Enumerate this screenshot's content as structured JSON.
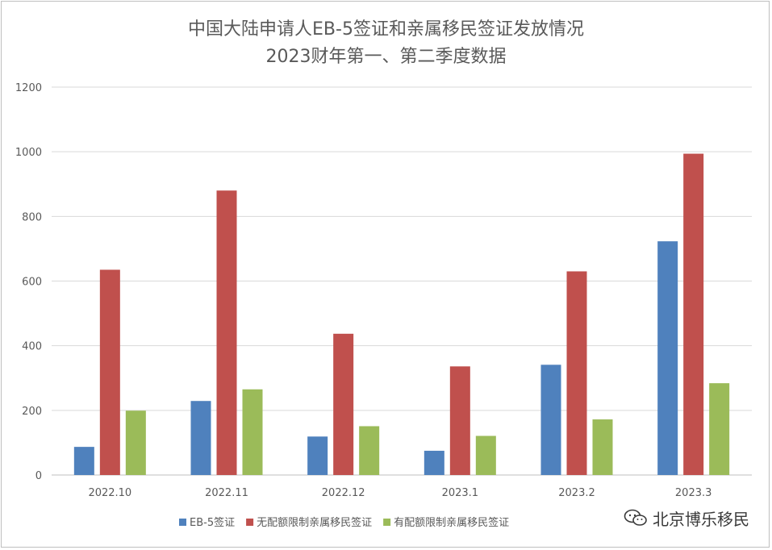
{
  "chart_data": {
    "type": "bar",
    "title": "中国大陆申请人EB-5签证和亲属移民签证发放情况",
    "subtitle": "2023财年第一、第二季度数据",
    "categories": [
      "2022.10",
      "2022.11",
      "2022.12",
      "2023.1",
      "2023.2",
      "2023.3"
    ],
    "series": [
      {
        "name": "EB-5签证",
        "color": "#4f81bd",
        "values": [
          87,
          229,
          119,
          75,
          341,
          723
        ]
      },
      {
        "name": "无配额限制亲属移民签证",
        "color": "#c0504d",
        "values": [
          635,
          880,
          437,
          336,
          630,
          994
        ]
      },
      {
        "name": "有配额限制亲属移民签证",
        "color": "#9bbb59",
        "values": [
          199,
          265,
          151,
          121,
          172,
          284
        ]
      }
    ],
    "ylim": [
      0,
      1200
    ],
    "yticks": [
      0,
      200,
      400,
      600,
      800,
      1000,
      1200
    ],
    "grid": true,
    "legend_position": "bottom"
  },
  "watermark": {
    "text": "北京博乐移民",
    "icon": "wechat-icon"
  }
}
